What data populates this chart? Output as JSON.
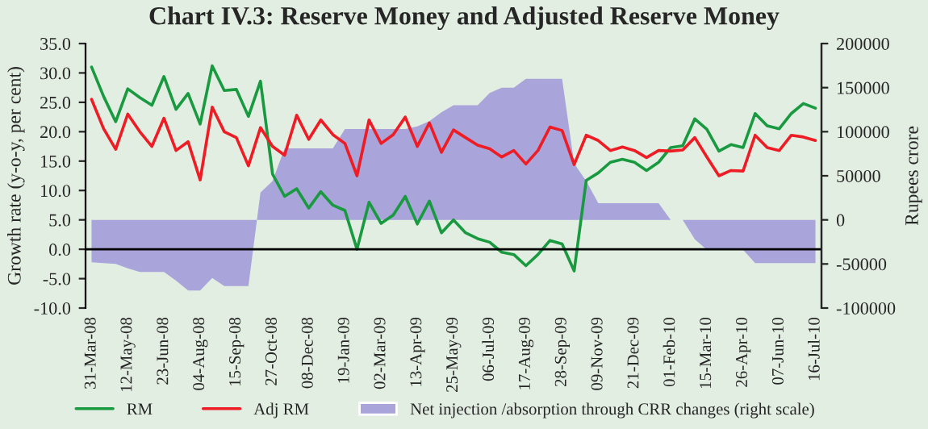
{
  "chart_data": {
    "type": "line",
    "title": "Chart IV.3: Reserve Money and Adjusted Reserve Money",
    "ylabel": "Growth rate (y-o-y, per cent)",
    "y2label": "Rupees crore",
    "categories": [
      "31-Mar-08",
      null,
      null,
      "12-May-08",
      null,
      null,
      "23-Jun-08",
      null,
      null,
      "04-Aug-08",
      null,
      null,
      "15-Sep-08",
      null,
      null,
      "27-Oct-08",
      null,
      null,
      "08-Dec-08",
      null,
      null,
      "19-Jan-09",
      null,
      null,
      "02-Mar-09",
      null,
      null,
      "13-Apr-09",
      null,
      null,
      "25-May-09",
      null,
      null,
      "06-Jul-09",
      null,
      null,
      "17-Aug-09",
      null,
      null,
      "28-Sep-09",
      null,
      null,
      "09-Nov-09",
      null,
      null,
      "21-Dec-09",
      null,
      null,
      "01-Feb-10",
      null,
      null,
      "15-Mar-10",
      null,
      null,
      "26-Apr-10",
      null,
      null,
      "07-Jun-10",
      null,
      null,
      "16-Jul-10"
    ],
    "series": [
      {
        "name": "Net injection /absorption through CRR changes (right scale)",
        "type": "area",
        "axis": "y2",
        "color": "#a9a4d9",
        "values": [
          -48000,
          -49000,
          -50000,
          -55000,
          -59000,
          -59000,
          -59000,
          -69000,
          -80000,
          -80000,
          -66000,
          -75000,
          -75000,
          -75000,
          31000,
          44000,
          81000,
          81000,
          81000,
          81000,
          81000,
          103000,
          103000,
          103000,
          103000,
          103000,
          103000,
          106000,
          112000,
          122000,
          130000,
          130000,
          130000,
          144000,
          150000,
          150000,
          160000,
          160000,
          160000,
          160000,
          64000,
          44000,
          19000,
          19000,
          19000,
          19000,
          19000,
          19000,
          0,
          0,
          -22000,
          -34000,
          -34000,
          -34000,
          -34000,
          -49000,
          -49000,
          -49000,
          -49000,
          -49000,
          -49000
        ]
      },
      {
        "name": "RM",
        "color": "#1a9a40",
        "values": [
          31,
          26,
          21.7,
          27.3,
          25.8,
          24.5,
          29.4,
          23.8,
          26.5,
          21.3,
          31.2,
          27,
          27.2,
          22.6,
          28.6,
          12.8,
          9,
          10.3,
          7,
          9.8,
          7.5,
          6.6,
          0,
          8,
          4.4,
          5.8,
          9,
          4.3,
          8.2,
          2.8,
          5,
          2.8,
          1.8,
          1.2,
          -0.5,
          -0.9,
          -2.8,
          -0.9,
          1.5,
          0.9,
          -3.7,
          11.7,
          13,
          14.8,
          15.3,
          14.8,
          13.4,
          14.8,
          17.3,
          17.6,
          22.2,
          20.4,
          16.7,
          17.8,
          17.3,
          23.1,
          21,
          20.5,
          23.1,
          24.8,
          24
        ]
      },
      {
        "name": "Adj RM",
        "color": "#ee1c25",
        "values": [
          25.5,
          20.5,
          17,
          23,
          20,
          17.5,
          22.3,
          16.8,
          18.3,
          11.8,
          24.2,
          20,
          19,
          14.2,
          20.7,
          17.5,
          16,
          22.8,
          18.7,
          22,
          19.5,
          18,
          12.5,
          22,
          18,
          19.5,
          22.5,
          17.5,
          21.5,
          16.5,
          20.3,
          19,
          17.7,
          17.1,
          15.7,
          16.8,
          14.5,
          16.8,
          20.8,
          20.2,
          14.4,
          19.4,
          18.5,
          16.8,
          17.4,
          16.8,
          15.6,
          16.8,
          16.7,
          16.9,
          19,
          15.7,
          12.5,
          13.4,
          13.3,
          19.4,
          17.3,
          16.8,
          19.4,
          19.1,
          18.5
        ]
      }
    ],
    "ylim": [
      -10,
      35
    ],
    "yticks": [
      {
        "value": -10,
        "label": "-10.0"
      },
      {
        "value": -5,
        "label": "-5.0"
      },
      {
        "value": 0,
        "label": "0.0"
      },
      {
        "value": 5,
        "label": "5.0"
      },
      {
        "value": 10,
        "label": "10.0"
      },
      {
        "value": 15,
        "label": "15.0"
      },
      {
        "value": 20,
        "label": "20.0"
      },
      {
        "value": 25,
        "label": "25.0"
      },
      {
        "value": 30,
        "label": "30.0"
      },
      {
        "value": 35,
        "label": "35.0"
      }
    ],
    "y2lim": [
      -100000,
      200000
    ],
    "y2ticks": [
      -100000,
      -50000,
      0,
      50000,
      100000,
      150000,
      200000
    ],
    "ref_lines": [
      {
        "axis": "y",
        "value": 0,
        "label": null,
        "color": "#000000"
      }
    ],
    "grid": false,
    "legend": "bottom"
  }
}
